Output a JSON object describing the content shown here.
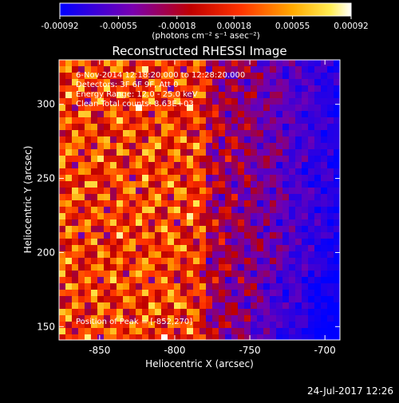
{
  "chart_data": {
    "type": "heatmap",
    "title": "Reconstructed RHESSI Image",
    "xlabel": "Heliocentric X (arcsec)",
    "ylabel": "Heliocentric Y (arcsec)",
    "xlim": [
      -877,
      -690
    ],
    "ylim": [
      141,
      330
    ],
    "xticks": [
      -850,
      -800,
      -750,
      -700
    ],
    "yticks": [
      150,
      200,
      250,
      300
    ],
    "xtick_labels": [
      "-850",
      "-800",
      "-750",
      "-700"
    ],
    "ytick_labels": [
      "150",
      "200",
      "250",
      "300"
    ],
    "colorbar": {
      "ticks": [
        -0.00092,
        -0.00055,
        -0.00018,
        0.00018,
        0.00055,
        0.00092
      ],
      "tick_labels": [
        "-0.00092",
        "-0.00055",
        "-0.00018",
        "0.00018",
        "0.00055",
        "0.00092"
      ],
      "range": [
        -0.00092,
        0.00092
      ],
      "unit_label": "(photons cm⁻² s⁻¹ asec⁻²)"
    },
    "peak": {
      "x": -852,
      "y": 270
    },
    "colormap": [
      "#0000ff",
      "#6600cc",
      "#aa0000",
      "#ff3300",
      "#ff9900",
      "#ffee44",
      "#ffffff"
    ]
  },
  "annotations": {
    "time": "6-Nov-2014 12:18:20.000 to 12:28:20.000",
    "detectors": "Detectors: 3F 6F 9F, Att 0",
    "energy": "Energy Range: 12.0 - 25.0 keV",
    "clean": "Clean     Total counts: 8.63E+03",
    "peak": "Position of Peak = [-852,270]"
  },
  "footer": {
    "timestamp": "24-Jul-2017 12:26"
  }
}
